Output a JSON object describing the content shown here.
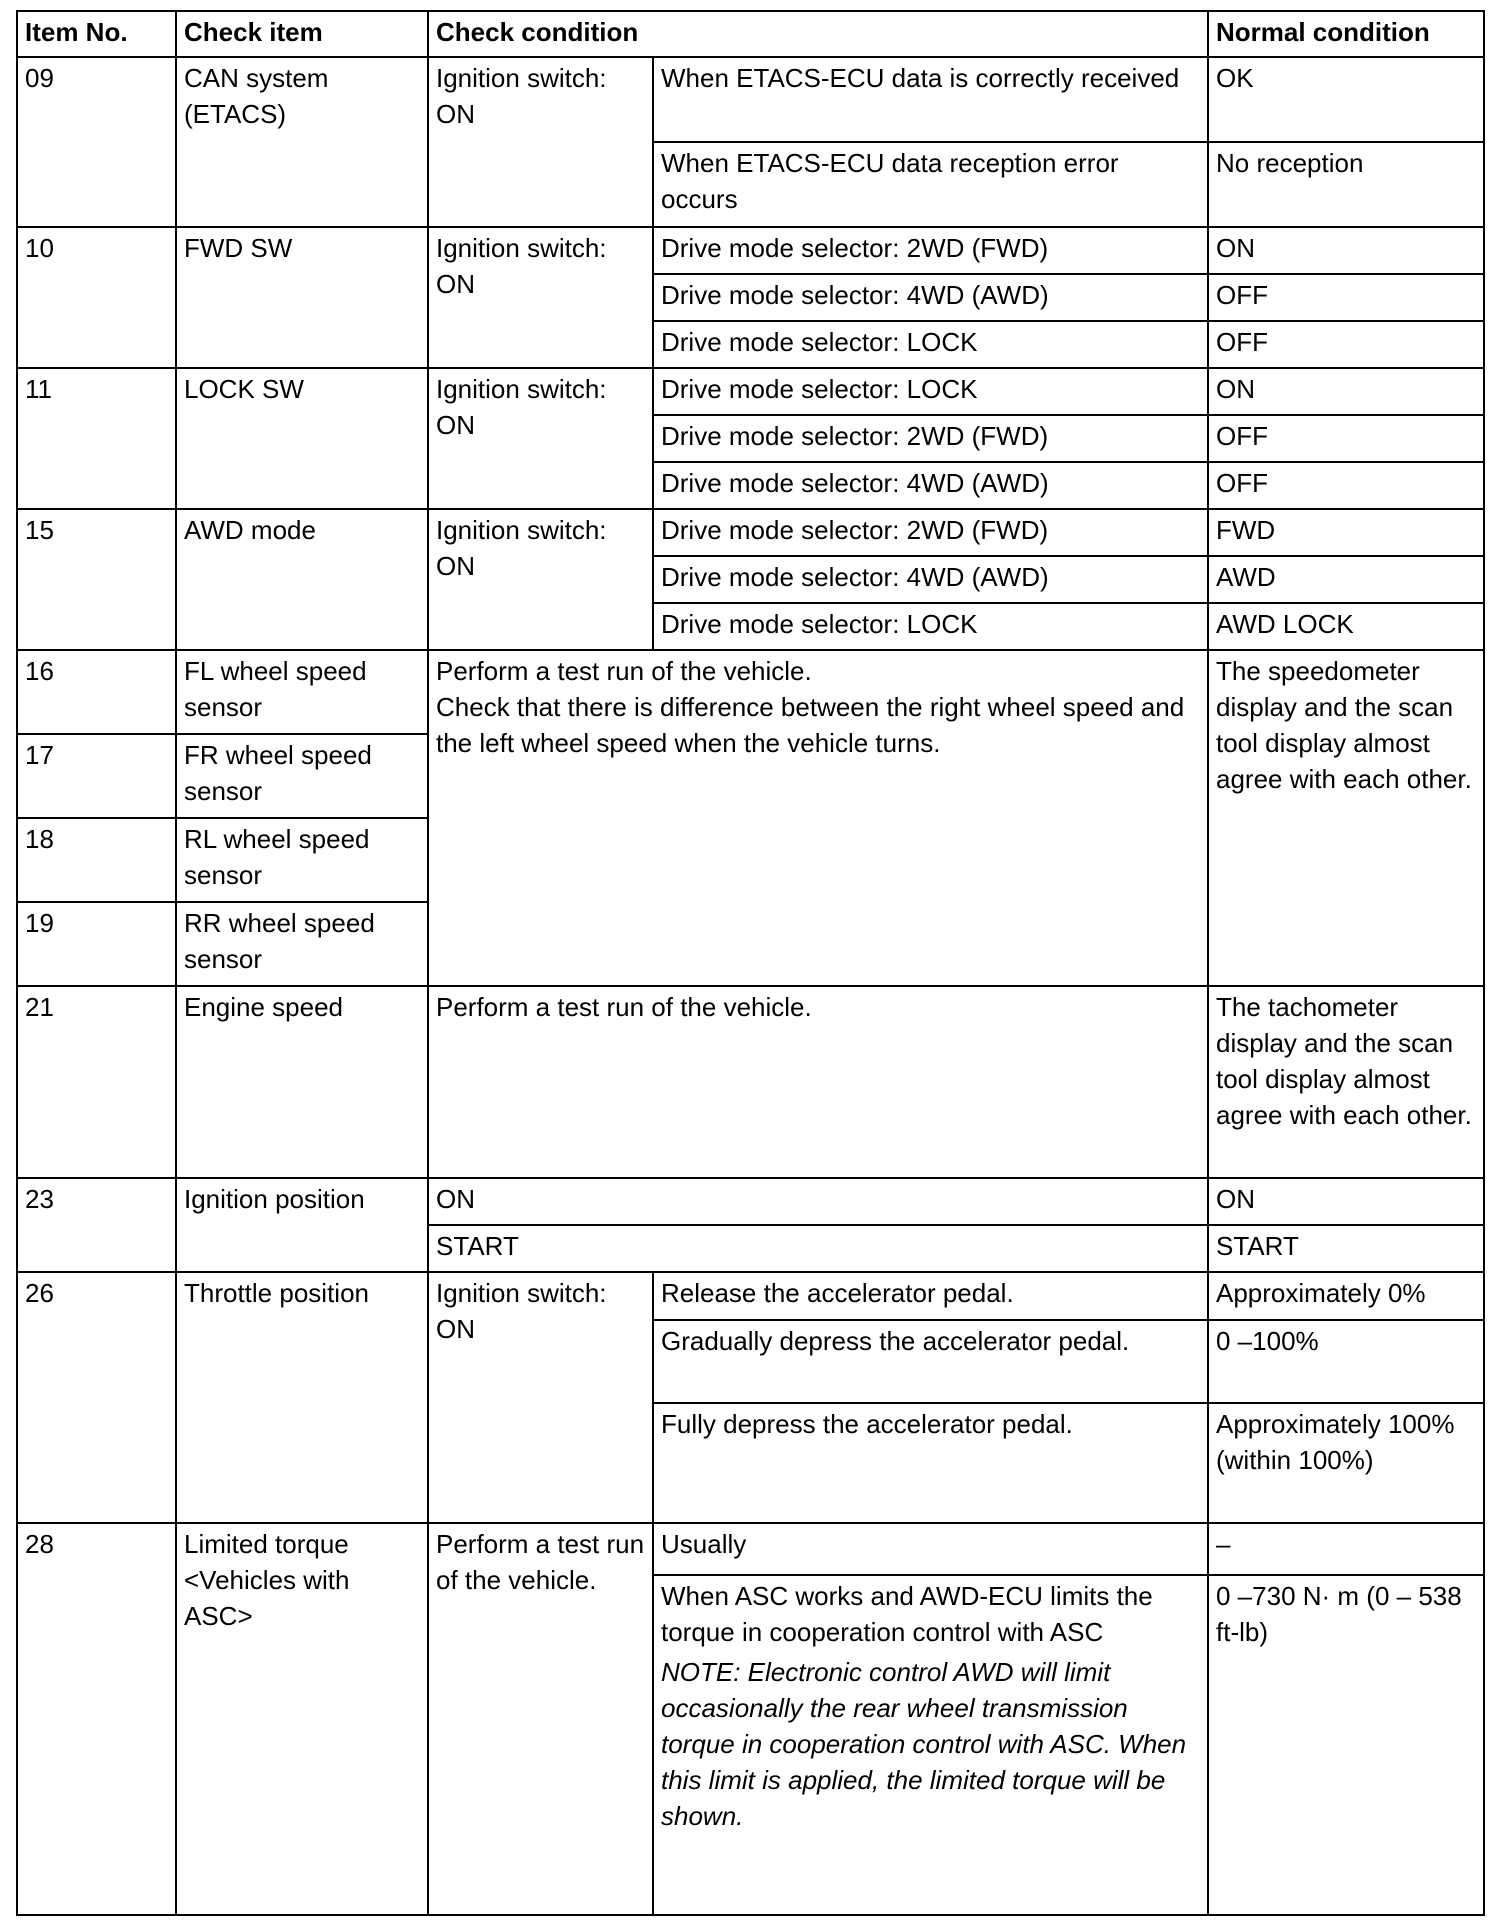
{
  "headers": {
    "item_no": "Item No.",
    "check_item": "Check item",
    "check_condition": "Check condition",
    "normal_condition": "Normal condition"
  },
  "r09": {
    "no": "09",
    "item": "CAN system (ETACS)",
    "cond": "Ignition switch: ON",
    "subs": [
      {
        "cond": "When ETACS-ECU data is correctly received",
        "normal": "OK"
      },
      {
        "cond": "When ETACS-ECU data reception error occurs",
        "normal": "No reception"
      }
    ]
  },
  "r10": {
    "no": "10",
    "item": "FWD SW",
    "cond": "Ignition switch: ON",
    "subs": [
      {
        "cond": "Drive mode selector: 2WD (FWD)",
        "normal": "ON"
      },
      {
        "cond": "Drive mode selector: 4WD (AWD)",
        "normal": "OFF"
      },
      {
        "cond": "Drive mode selector: LOCK",
        "normal": "OFF"
      }
    ]
  },
  "r11": {
    "no": "11",
    "item": "LOCK SW",
    "cond": "Ignition switch: ON",
    "subs": [
      {
        "cond": "Drive mode selector: LOCK",
        "normal": "ON"
      },
      {
        "cond": "Drive mode selector: 2WD (FWD)",
        "normal": "OFF"
      },
      {
        "cond": "Drive mode selector: 4WD (AWD)",
        "normal": "OFF"
      }
    ]
  },
  "r15": {
    "no": "15",
    "item": "AWD mode",
    "cond": "Ignition switch: ON",
    "subs": [
      {
        "cond": "Drive mode selector: 2WD (FWD)",
        "normal": "FWD"
      },
      {
        "cond": "Drive mode selector: 4WD (AWD)",
        "normal": "AWD"
      },
      {
        "cond": "Drive mode selector: LOCK",
        "normal": "AWD LOCK"
      }
    ]
  },
  "wheel": {
    "items": [
      {
        "no": "16",
        "item": "FL wheel speed sensor"
      },
      {
        "no": "17",
        "item": "FR wheel speed sensor"
      },
      {
        "no": "18",
        "item": "RL wheel speed sensor"
      },
      {
        "no": "19",
        "item": "RR wheel speed sensor"
      }
    ],
    "cond_line1": "Perform a test run of the vehicle.",
    "cond_line2": "Check that there is difference between the right wheel speed and the left wheel speed when the vehicle turns.",
    "normal": "The speedometer display and the scan tool display almost agree with each other."
  },
  "r21": {
    "no": "21",
    "item": "Engine speed",
    "cond": "Perform a test run of the vehicle.",
    "normal": "The tachometer display and the scan tool display almost agree with each other."
  },
  "r23": {
    "no": "23",
    "item": "Ignition position",
    "subs": [
      {
        "cond": "ON",
        "normal": "ON"
      },
      {
        "cond": "START",
        "normal": "START"
      }
    ]
  },
  "r26": {
    "no": "26",
    "item": "Throttle position",
    "cond": "Ignition switch: ON",
    "subs": [
      {
        "cond": "Release the accelerator pedal.",
        "normal": "Approximately 0%"
      },
      {
        "cond": "Gradually depress the accelerator pedal.",
        "normal": "0 –100%"
      },
      {
        "cond": "Fully depress the accelerator pedal.",
        "normal": "Approximately 100% (within 100%)"
      }
    ]
  },
  "r28": {
    "no": "28",
    "item": "Limited torque <Vehicles with ASC>",
    "cond": "Perform a test run of the vehicle.",
    "subs": [
      {
        "cond": "Usually",
        "normal": "–"
      },
      {
        "cond": "When ASC works and AWD-ECU limits the torque in cooperation control with ASC",
        "normal": "0 –730 N·  m (0 – 538 ft-lb)"
      }
    ],
    "note": "NOTE: Electronic control AWD will limit occasionally the rear wheel transmission torque in cooperation control with ASC. When this limit is applied, the limited torque will be shown."
  }
}
